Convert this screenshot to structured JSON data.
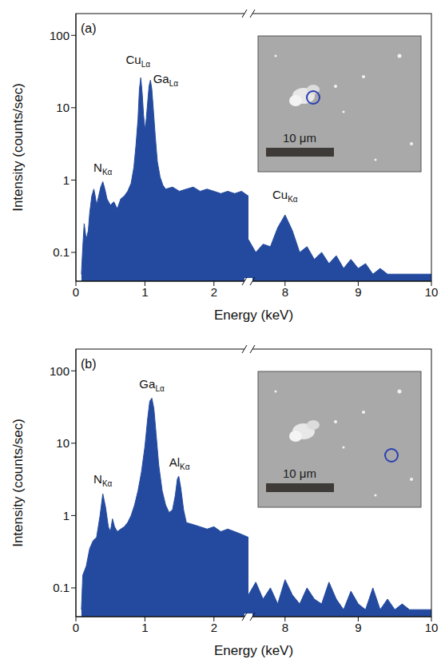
{
  "chart_data": [
    {
      "type": "area",
      "label": "(a)",
      "x_label": "Energy (keV)",
      "y_label": "Intensity (counts/sec)",
      "color": "#234a9e",
      "log": "y",
      "xlim": [
        0,
        10
      ],
      "x_break": [
        2.5,
        7.5
      ],
      "xticks": [
        0,
        1,
        2,
        8,
        9,
        10
      ],
      "ylim": [
        0.04,
        200
      ],
      "yticks": [
        0.1,
        1,
        10,
        100
      ],
      "x": [
        0.08,
        0.1,
        0.12,
        0.15,
        0.18,
        0.2,
        0.23,
        0.26,
        0.28,
        0.3,
        0.33,
        0.36,
        0.39,
        0.42,
        0.45,
        0.5,
        0.55,
        0.6,
        0.65,
        0.7,
        0.75,
        0.8,
        0.84,
        0.87,
        0.9,
        0.92,
        0.94,
        0.96,
        0.98,
        1.0,
        1.02,
        1.04,
        1.06,
        1.08,
        1.1,
        1.12,
        1.15,
        1.18,
        1.22,
        1.26,
        1.3,
        1.4,
        1.5,
        1.6,
        1.7,
        1.8,
        1.9,
        2.0,
        2.1,
        2.2,
        2.3,
        2.4,
        2.5,
        7.5,
        7.6,
        7.7,
        7.8,
        7.9,
        8.0,
        8.1,
        8.2,
        8.3,
        8.4,
        8.5,
        8.6,
        8.7,
        8.8,
        8.9,
        9.0,
        9.1,
        9.2,
        9.3,
        9.4,
        9.5,
        9.6,
        9.7,
        9.8,
        9.9,
        10.0
      ],
      "values": [
        0.05,
        0.12,
        0.25,
        0.15,
        0.2,
        0.35,
        0.6,
        0.75,
        0.6,
        0.45,
        0.6,
        0.8,
        0.95,
        0.75,
        0.55,
        0.45,
        0.5,
        0.4,
        0.55,
        0.6,
        0.7,
        0.9,
        1.5,
        3,
        7,
        18,
        26,
        16,
        8,
        5,
        7,
        12,
        20,
        24,
        18,
        10,
        4,
        1.8,
        1.1,
        0.85,
        0.75,
        0.8,
        0.7,
        0.75,
        0.8,
        0.7,
        0.75,
        0.7,
        0.65,
        0.7,
        0.65,
        0.7,
        0.6,
        0.15,
        0.1,
        0.13,
        0.12,
        0.22,
        0.33,
        0.2,
        0.1,
        0.12,
        0.08,
        0.1,
        0.07,
        0.09,
        0.06,
        0.08,
        0.06,
        0.07,
        0.05,
        0.06,
        0.05,
        0.05,
        0.05,
        0.05,
        0.05,
        0.05,
        0.05
      ],
      "annotations": [
        {
          "text": "N",
          "subscript": "Kα",
          "x": 0.39,
          "y": 1.3
        },
        {
          "text": "Cu",
          "subscript": "Lα",
          "x": 0.9,
          "y": 40
        },
        {
          "text": "Ga",
          "subscript": "Lα",
          "x": 1.3,
          "y": 22
        },
        {
          "text": "Cu",
          "subscript": "Kα",
          "x": 8.0,
          "y": 0.55
        }
      ],
      "inset": {
        "scale_bar": "10 μm"
      }
    },
    {
      "type": "area",
      "label": "(b)",
      "x_label": "Energy (keV)",
      "y_label": "Intensity (counts/sec)",
      "color": "#234a9e",
      "log": "y",
      "xlim": [
        0,
        10
      ],
      "x_break": [
        2.5,
        7.5
      ],
      "xticks": [
        0,
        1,
        2,
        8,
        9,
        10
      ],
      "ylim": [
        0.04,
        200
      ],
      "yticks": [
        0.1,
        1,
        10,
        100
      ],
      "x": [
        0.08,
        0.1,
        0.15,
        0.2,
        0.25,
        0.3,
        0.35,
        0.39,
        0.43,
        0.47,
        0.5,
        0.53,
        0.56,
        0.6,
        0.65,
        0.7,
        0.75,
        0.8,
        0.85,
        0.9,
        0.95,
        1.0,
        1.04,
        1.07,
        1.1,
        1.13,
        1.16,
        1.2,
        1.25,
        1.3,
        1.35,
        1.4,
        1.44,
        1.47,
        1.49,
        1.52,
        1.56,
        1.6,
        1.7,
        1.8,
        1.9,
        2.0,
        2.1,
        2.2,
        2.3,
        2.4,
        2.5,
        7.5,
        7.6,
        7.7,
        7.8,
        7.9,
        8.0,
        8.1,
        8.2,
        8.3,
        8.4,
        8.5,
        8.6,
        8.7,
        8.8,
        8.9,
        9.0,
        9.1,
        9.2,
        9.3,
        9.4,
        9.5,
        9.6,
        9.7,
        9.8,
        9.9,
        10.0
      ],
      "values": [
        0.05,
        0.15,
        0.2,
        0.35,
        0.45,
        0.5,
        1.0,
        2.0,
        1.3,
        0.7,
        0.6,
        0.9,
        0.7,
        0.6,
        0.65,
        0.7,
        0.8,
        1.0,
        1.4,
        2.2,
        4,
        9,
        22,
        38,
        42,
        30,
        14,
        5,
        2.2,
        1.4,
        1.1,
        1.2,
        1.9,
        3.2,
        3.5,
        2.4,
        1.2,
        0.8,
        0.75,
        0.7,
        0.65,
        0.7,
        0.6,
        0.65,
        0.6,
        0.55,
        0.5,
        0.08,
        0.12,
        0.07,
        0.1,
        0.06,
        0.13,
        0.08,
        0.06,
        0.1,
        0.07,
        0.06,
        0.12,
        0.07,
        0.05,
        0.09,
        0.06,
        0.05,
        0.1,
        0.05,
        0.07,
        0.05,
        0.06,
        0.05,
        0.05,
        0.05,
        0.05
      ],
      "annotations": [
        {
          "text": "N",
          "subscript": "Kα",
          "x": 0.39,
          "y": 2.8
        },
        {
          "text": "Ga",
          "subscript": "Lα",
          "x": 1.1,
          "y": 58
        },
        {
          "text": "Al",
          "subscript": "Kα",
          "x": 1.5,
          "y": 4.8
        }
      ],
      "inset": {
        "scale_bar": "10 μm"
      }
    }
  ]
}
